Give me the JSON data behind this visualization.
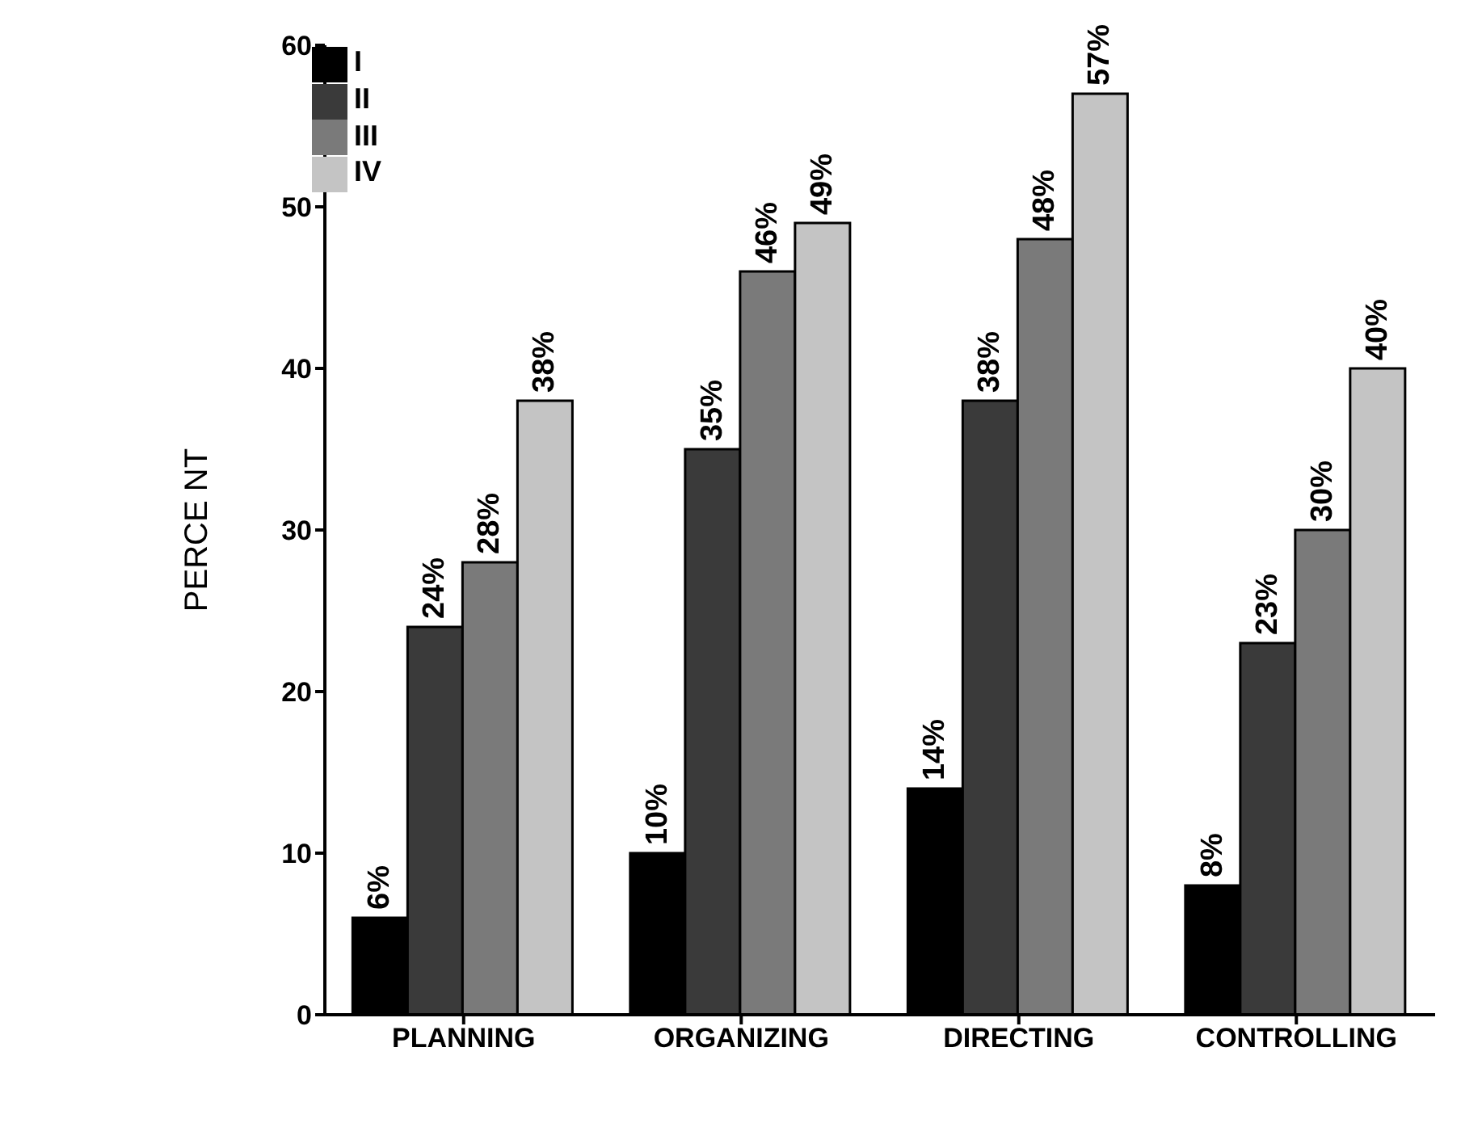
{
  "chart_data": {
    "type": "bar",
    "ylabel": "PERCE NT",
    "categories": [
      "PLANNING",
      "ORGANIZING",
      "DIRECTING",
      "CONTROLLING"
    ],
    "series": [
      {
        "name": "I",
        "color": "#000000",
        "values": [
          6,
          10,
          14,
          8
        ],
        "value_labels": [
          "6%",
          "10%",
          "14%",
          "8%"
        ]
      },
      {
        "name": "II",
        "color": "#3a3a3a",
        "values": [
          24,
          35,
          38,
          23
        ],
        "value_labels": [
          "24%",
          "35%",
          "38%",
          "23%"
        ]
      },
      {
        "name": "III",
        "color": "#7a7a7a",
        "values": [
          28,
          46,
          48,
          30
        ],
        "value_labels": [
          "28%",
          "46%",
          "48%",
          "30%"
        ]
      },
      {
        "name": "IV",
        "color": "#c4c4c4",
        "values": [
          38,
          49,
          57,
          40
        ],
        "value_labels": [
          "38%",
          "49%",
          "57%",
          "40%"
        ]
      }
    ],
    "ylim": [
      0,
      60
    ],
    "yticks": [
      0,
      10,
      20,
      30,
      40,
      50,
      60
    ],
    "grid": false,
    "legend": "top left"
  }
}
